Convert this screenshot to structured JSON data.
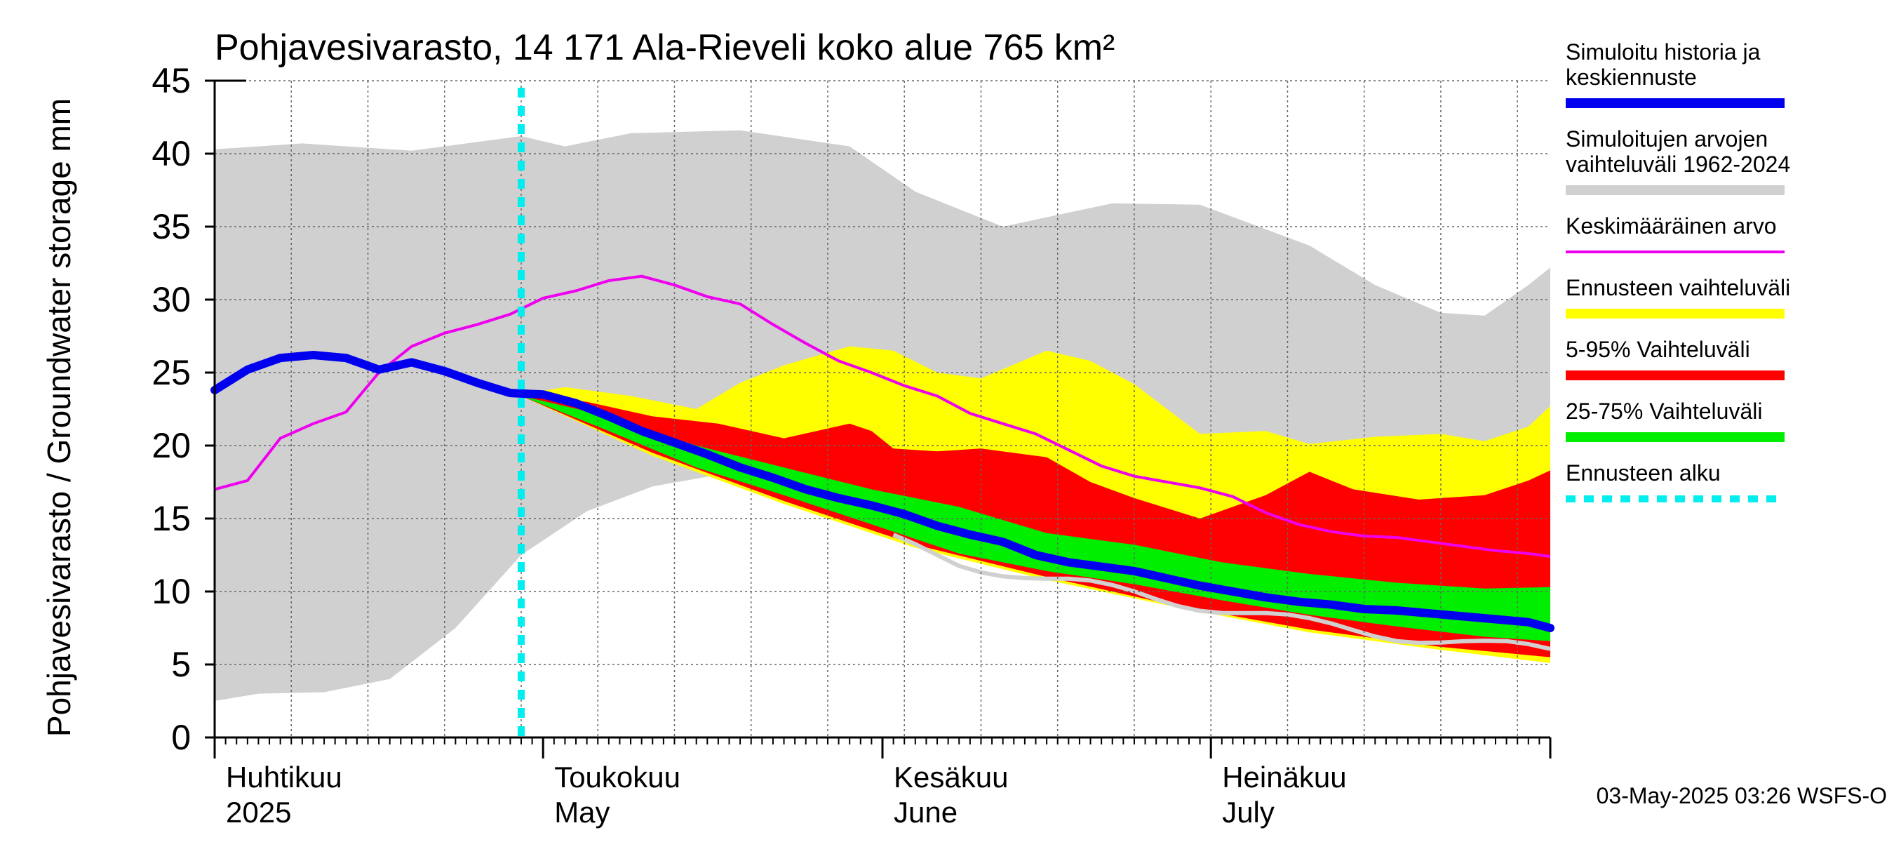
{
  "chart_data": {
    "type": "area",
    "title": "Pohjavesivarasto, 14 171 Ala-Rieveli koko alue 765 km²",
    "ylabel": "Pohjavesivarasto / Groundwater storage   mm",
    "ylim": [
      0,
      45
    ],
    "yticks": [
      0,
      5,
      10,
      15,
      20,
      25,
      30,
      35,
      40,
      45
    ],
    "x_start_date": "2025-03-31",
    "x_end_date": "2025-07-31",
    "forecast_start_day": 28,
    "month_ticks": [
      {
        "day": 0,
        "label1": "Huhtikuu",
        "label2": "2025"
      },
      {
        "day": 30,
        "label1": "Toukokuu",
        "label2": "May"
      },
      {
        "day": 61,
        "label1": "Kesäkuu",
        "label2": "June"
      },
      {
        "day": 91,
        "label1": "Heinäkuu",
        "label2": "July"
      }
    ],
    "timestamp": "03-May-2025 03:26 WSFS-O",
    "legend": [
      {
        "key": "history",
        "label_lines": [
          "Simuloitu historia ja",
          "keskiennuste"
        ],
        "color": "#0000ee",
        "style": "thick"
      },
      {
        "key": "range",
        "label_lines": [
          "Simuloitujen arvojen",
          "vaihteluväli 1962-2024"
        ],
        "color": "#d0d0d0",
        "style": "band"
      },
      {
        "key": "mean",
        "label_lines": [
          "Keskimääräinen arvo"
        ],
        "color": "#ee00ee",
        "style": "line"
      },
      {
        "key": "fc_range",
        "label_lines": [
          "Ennusteen vaihteluväli"
        ],
        "color": "#ffff00",
        "style": "band"
      },
      {
        "key": "p5_95",
        "label_lines": [
          "5-95% Vaihteluväli"
        ],
        "color": "#ff0000",
        "style": "band"
      },
      {
        "key": "p25_75",
        "label_lines": [
          "25-75% Vaihteluväli"
        ],
        "color": "#00ee00",
        "style": "band"
      },
      {
        "key": "fc_start",
        "label_lines": [
          "Ennusteen alku"
        ],
        "color": "#00eeee",
        "style": "dashed"
      }
    ],
    "series": {
      "hist_range_upper": {
        "days": [
          0,
          8,
          18,
          28,
          32,
          38,
          48,
          58,
          64,
          72,
          82,
          90,
          100,
          106,
          112,
          116,
          120,
          122
        ],
        "values": [
          40.3,
          40.7,
          40.2,
          41.2,
          40.5,
          41.4,
          41.6,
          40.5,
          37.4,
          35.0,
          36.6,
          36.5,
          33.7,
          31.0,
          29.1,
          28.9,
          31.0,
          32.2
        ]
      },
      "hist_range_lower": {
        "days": [
          0,
          4,
          10,
          16,
          22,
          28,
          34,
          40,
          46,
          52,
          58,
          64,
          70,
          76,
          82,
          88,
          94,
          100,
          106,
          112,
          118,
          122
        ],
        "values": [
          2.5,
          3.0,
          3.1,
          4.0,
          7.5,
          12.5,
          15.5,
          17.2,
          18.0,
          16.5,
          15.3,
          14.3,
          13.2,
          12.2,
          11.3,
          10.4,
          9.4,
          8.5,
          7.6,
          6.6,
          5.8,
          5.2
        ]
      },
      "fc_range_upper": {
        "days": [
          28,
          32,
          38,
          44,
          48,
          52,
          58,
          62,
          66,
          70,
          76,
          80,
          84,
          90,
          96,
          100,
          106,
          112,
          116,
          120,
          122
        ],
        "values": [
          23.5,
          24.0,
          23.4,
          22.5,
          24.3,
          25.5,
          26.8,
          26.5,
          25.0,
          24.6,
          26.5,
          25.8,
          24.2,
          20.8,
          21.0,
          20.1,
          20.6,
          20.8,
          20.3,
          21.3,
          22.7
        ]
      },
      "fc_range_lower": {
        "days": [
          28,
          40,
          52,
          64,
          76,
          88,
          100,
          112,
          122
        ],
        "values": [
          23.4,
          19.3,
          16.0,
          13.0,
          10.8,
          8.9,
          7.2,
          6.0,
          5.1
        ]
      },
      "p95": {
        "days": [
          28,
          34,
          40,
          46,
          52,
          58,
          60,
          62,
          66,
          70,
          76,
          80,
          84,
          90,
          96,
          100,
          104,
          110,
          116,
          120,
          122
        ],
        "values": [
          23.4,
          23.0,
          22.0,
          21.5,
          20.5,
          21.5,
          21.0,
          19.8,
          19.6,
          19.8,
          19.2,
          17.5,
          16.4,
          15.0,
          16.6,
          18.2,
          17.0,
          16.3,
          16.6,
          17.6,
          18.3
        ]
      },
      "p5": {
        "days": [
          28,
          40,
          52,
          64,
          76,
          88,
          100,
          112,
          122
        ],
        "values": [
          23.4,
          19.5,
          16.2,
          13.2,
          11.0,
          9.0,
          7.4,
          6.2,
          5.5
        ]
      },
      "p75": {
        "days": [
          28,
          36,
          44,
          52,
          60,
          68,
          76,
          84,
          92,
          100,
          108,
          116,
          122
        ],
        "values": [
          23.4,
          22.0,
          20.0,
          18.5,
          17.0,
          15.8,
          14.0,
          13.2,
          12.0,
          11.2,
          10.6,
          10.2,
          10.3
        ]
      },
      "p25": {
        "days": [
          28,
          36,
          44,
          52,
          60,
          68,
          76,
          84,
          92,
          100,
          108,
          116,
          122
        ],
        "values": [
          23.4,
          21.0,
          18.5,
          16.6,
          14.6,
          12.6,
          11.4,
          10.5,
          9.4,
          8.4,
          7.6,
          6.9,
          6.6
        ]
      },
      "history": {
        "days": [
          0,
          3,
          6,
          9,
          12,
          15,
          18,
          21,
          24,
          27,
          30,
          33,
          36,
          39,
          42,
          45,
          48,
          51,
          54,
          57,
          60,
          63,
          66,
          69,
          72,
          75,
          78,
          81,
          84,
          87,
          90,
          93,
          96,
          99,
          102,
          105,
          108,
          111,
          114,
          117,
          120,
          122
        ],
        "values": [
          23.8,
          25.2,
          26.0,
          26.2,
          26.0,
          25.2,
          25.7,
          25.1,
          24.3,
          23.6,
          23.5,
          22.9,
          22.0,
          21.0,
          20.2,
          19.4,
          18.5,
          17.8,
          17.0,
          16.4,
          15.9,
          15.3,
          14.5,
          13.9,
          13.4,
          12.5,
          12.0,
          11.7,
          11.4,
          10.9,
          10.4,
          10.0,
          9.6,
          9.3,
          9.1,
          8.8,
          8.7,
          8.5,
          8.3,
          8.1,
          7.9,
          7.5
        ]
      },
      "mean": {
        "days": [
          0,
          3,
          6,
          9,
          12,
          15,
          18,
          21,
          24,
          27,
          30,
          33,
          36,
          39,
          42,
          45,
          48,
          51,
          54,
          57,
          60,
          63,
          66,
          69,
          72,
          75,
          78,
          81,
          84,
          87,
          90,
          93,
          96,
          99,
          102,
          105,
          108,
          111,
          114,
          117,
          120,
          122
        ],
        "values": [
          17.0,
          17.6,
          20.5,
          21.5,
          22.3,
          25.0,
          26.8,
          27.7,
          28.3,
          29.0,
          30.1,
          30.6,
          31.3,
          31.6,
          31.0,
          30.2,
          29.7,
          28.3,
          27.0,
          25.8,
          25.0,
          24.1,
          23.4,
          22.2,
          21.5,
          20.8,
          19.7,
          18.6,
          17.9,
          17.5,
          17.1,
          16.5,
          15.4,
          14.6,
          14.1,
          13.8,
          13.7,
          13.4,
          13.1,
          12.8,
          12.6,
          12.4
        ]
      }
    }
  }
}
